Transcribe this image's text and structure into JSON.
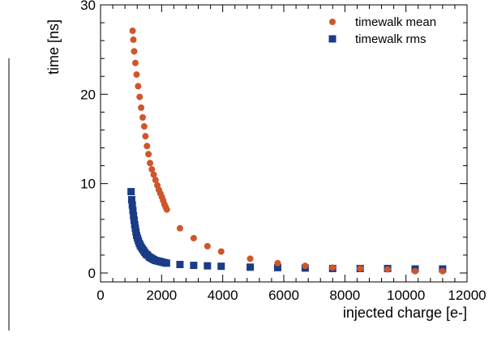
{
  "chart_data": {
    "type": "scatter",
    "title": "",
    "xlabel": "injected charge [e-]",
    "ylabel": "time [ns]",
    "xlim": [
      0,
      12000
    ],
    "ylim": [
      -1,
      30
    ],
    "x_ticks": [
      "0",
      "2000",
      "4000",
      "6000",
      "8000",
      "10000",
      "12000"
    ],
    "y_ticks": [
      "0",
      "10",
      "20",
      "30"
    ],
    "grid": false,
    "legend_position": "top-right",
    "series": [
      {
        "name": "timewalk mean",
        "marker": "circle",
        "color": "#d0552a",
        "points": [
          [
            1050,
            27.1
          ],
          [
            1075,
            26.1
          ],
          [
            1100,
            24.8
          ],
          [
            1140,
            23.5
          ],
          [
            1180,
            22.2
          ],
          [
            1230,
            20.9
          ],
          [
            1280,
            19.7
          ],
          [
            1330,
            18.5
          ],
          [
            1380,
            17.4
          ],
          [
            1430,
            16.4
          ],
          [
            1470,
            15.3
          ],
          [
            1520,
            14.2
          ],
          [
            1570,
            13.3
          ],
          [
            1620,
            12.3
          ],
          [
            1680,
            11.6
          ],
          [
            1740,
            11.0
          ],
          [
            1800,
            10.4
          ],
          [
            1860,
            9.8
          ],
          [
            1910,
            9.3
          ],
          [
            1960,
            8.9
          ],
          [
            2010,
            8.5
          ],
          [
            2050,
            8.1
          ],
          [
            2090,
            7.7
          ],
          [
            2130,
            7.4
          ],
          [
            2170,
            7.1
          ],
          [
            2600,
            5.0
          ],
          [
            3050,
            3.9
          ],
          [
            3500,
            3.0
          ],
          [
            3950,
            2.4
          ],
          [
            4900,
            1.6
          ],
          [
            5800,
            1.1
          ],
          [
            6700,
            0.8
          ],
          [
            7600,
            0.6
          ],
          [
            8500,
            0.5
          ],
          [
            9400,
            0.4
          ],
          [
            10300,
            0.2
          ],
          [
            11200,
            0.2
          ]
        ]
      },
      {
        "name": "timewalk rms",
        "marker": "square",
        "color": "#1a3b87",
        "points": [
          [
            1000,
            9.1
          ],
          [
            1020,
            8.2
          ],
          [
            1040,
            7.6
          ],
          [
            1060,
            7.0
          ],
          [
            1080,
            6.4
          ],
          [
            1100,
            5.9
          ],
          [
            1120,
            5.4
          ],
          [
            1140,
            5.0
          ],
          [
            1160,
            4.6
          ],
          [
            1180,
            4.2
          ],
          [
            1210,
            3.9
          ],
          [
            1240,
            3.6
          ],
          [
            1270,
            3.3
          ],
          [
            1300,
            3.1
          ],
          [
            1330,
            2.9
          ],
          [
            1370,
            2.7
          ],
          [
            1410,
            2.5
          ],
          [
            1450,
            2.3
          ],
          [
            1490,
            2.1
          ],
          [
            1540,
            2.0
          ],
          [
            1590,
            1.8
          ],
          [
            1640,
            1.7
          ],
          [
            1690,
            1.6
          ],
          [
            1740,
            1.5
          ],
          [
            1800,
            1.4
          ],
          [
            1860,
            1.35
          ],
          [
            1920,
            1.3
          ],
          [
            1980,
            1.25
          ],
          [
            2040,
            1.2
          ],
          [
            2100,
            1.15
          ],
          [
            2160,
            1.1
          ],
          [
            2600,
            0.95
          ],
          [
            3050,
            0.85
          ],
          [
            3500,
            0.8
          ],
          [
            3950,
            0.75
          ],
          [
            4900,
            0.65
          ],
          [
            5800,
            0.6
          ],
          [
            6700,
            0.55
          ],
          [
            7600,
            0.5
          ],
          [
            8500,
            0.5
          ],
          [
            9400,
            0.5
          ],
          [
            10300,
            0.45
          ],
          [
            11200,
            0.45
          ]
        ]
      }
    ]
  }
}
